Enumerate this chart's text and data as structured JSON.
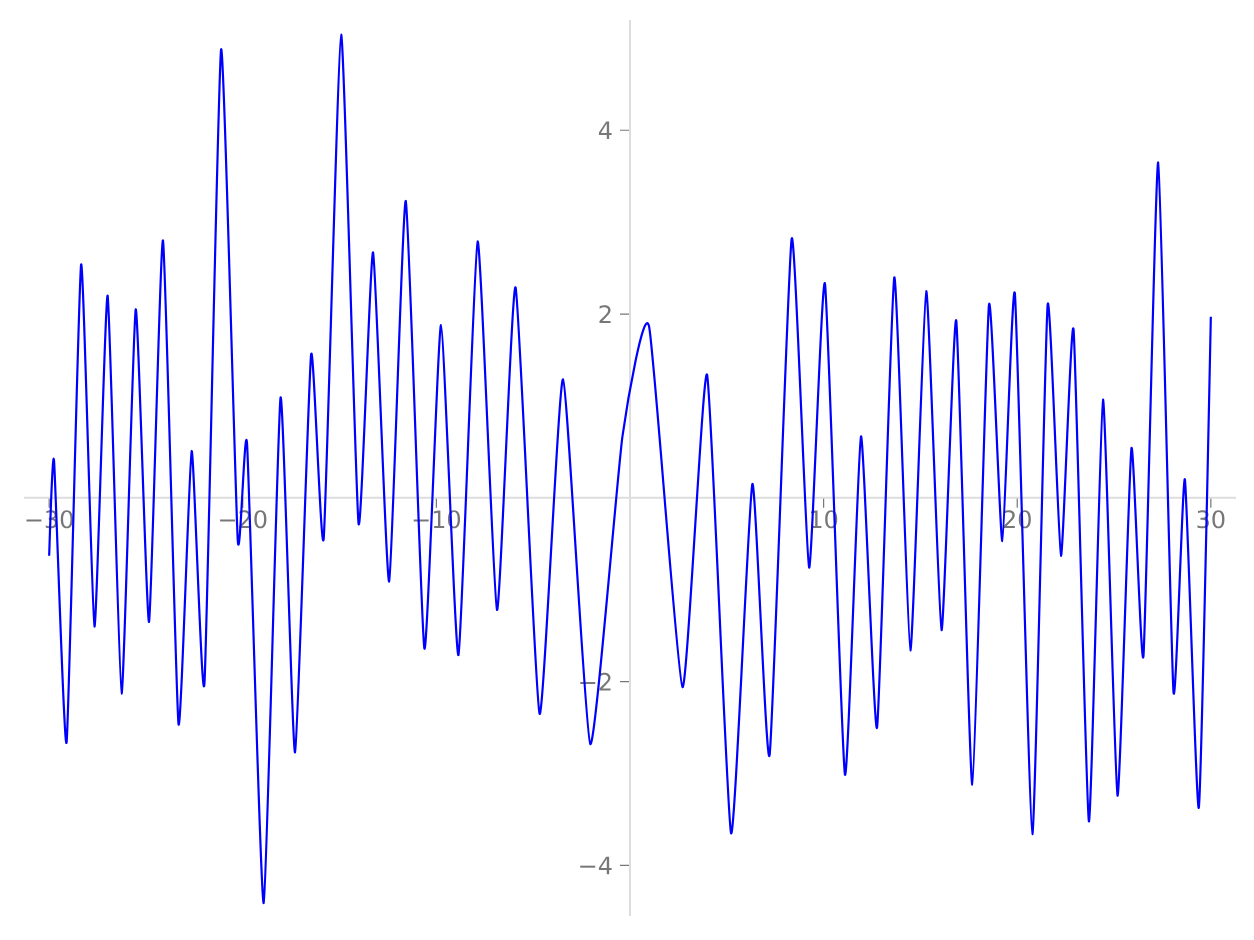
{
  "chart_data": {
    "type": "line",
    "x": [
      -30.0,
      -29.75,
      -29.1,
      -28.35,
      -27.66,
      -26.98,
      -26.26,
      -25.53,
      -24.84,
      -24.12,
      -23.32,
      -22.64,
      -21.98,
      -21.12,
      -20.26,
      -19.78,
      -18.92,
      -18.05,
      -17.3,
      -16.47,
      -15.82,
      -14.92,
      -14.02,
      -13.27,
      -12.44,
      -11.58,
      -10.62,
      -9.76,
      -8.86,
      -7.87,
      -6.87,
      -5.91,
      -4.67,
      -3.46,
      -2.05,
      -0.39,
      0.98,
      2.71,
      3.98,
      5.22,
      6.32,
      7.21,
      8.35,
      9.25,
      10.07,
      11.1,
      11.93,
      12.76,
      13.65,
      14.48,
      15.3,
      16.09,
      16.85,
      17.68,
      18.54,
      19.23,
      19.88,
      20.78,
      21.57,
      22.26,
      22.91,
      23.7,
      24.43,
      25.18,
      25.9,
      26.52,
      27.28,
      28.07,
      28.66,
      29.38,
      30.0
    ],
    "values": [
      -0.63,
      0.41,
      -2.66,
      2.54,
      -1.4,
      2.2,
      -2.13,
      2.05,
      -1.35,
      2.8,
      -2.46,
      0.51,
      -2.02,
      4.88,
      -0.46,
      0.59,
      -4.41,
      1.09,
      -2.77,
      1.56,
      -0.44,
      5.04,
      -0.28,
      2.67,
      -0.91,
      3.23,
      -1.64,
      1.88,
      -1.71,
      2.79,
      -1.22,
      2.29,
      -2.35,
      1.29,
      -2.68,
      0.67,
      1.87,
      -2.06,
      1.34,
      -3.65,
      0.15,
      -2.8,
      2.82,
      -0.76,
      2.33,
      -3.01,
      0.67,
      -2.5,
      2.4,
      -1.66,
      2.25,
      -1.44,
      1.93,
      -3.12,
      2.1,
      -0.47,
      2.22,
      -3.66,
      2.1,
      -0.63,
      1.83,
      -3.52,
      1.07,
      -3.24,
      0.54,
      -1.72,
      3.65,
      -2.11,
      0.2,
      -3.37,
      1.97
    ],
    "color": "#0000ff",
    "xlim": [
      -31.3,
      31.3
    ],
    "ylim": [
      -4.55,
      5.2
    ],
    "xticks": [
      {
        "value": -30,
        "label": "−30"
      },
      {
        "value": -20,
        "label": "−20"
      },
      {
        "value": -10,
        "label": "−10"
      },
      10,
      20,
      30
    ],
    "yticks": [
      {
        "value": -4,
        "label": "−4"
      },
      {
        "value": -2,
        "label": "−2"
      },
      2,
      4
    ],
    "grid": false
  }
}
